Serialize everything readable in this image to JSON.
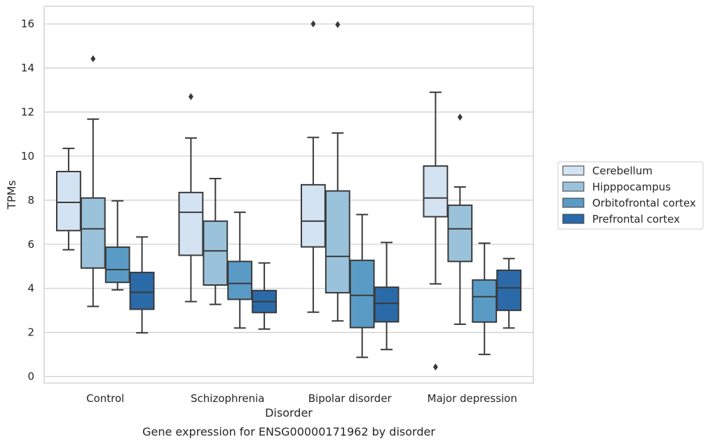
{
  "chart_data": {
    "type": "boxplot",
    "title": "Gene expression for ENSG00000171962 by disorder",
    "xlabel": "Disorder",
    "ylabel": "TPMs",
    "ylim": [
      -0.3,
      16.8
    ],
    "yticks": [
      0,
      2,
      4,
      6,
      8,
      10,
      12,
      14,
      16
    ],
    "grid": "horizontal",
    "legend_position": "right",
    "categories": [
      "Control",
      "Schizophrenia",
      "Bipolar disorder",
      "Major depression"
    ],
    "series": [
      {
        "name": "Cerebellum",
        "color": "#d4e3f2",
        "boxes": [
          {
            "whislo": 5.75,
            "q1": 6.62,
            "med": 7.9,
            "q3": 9.3,
            "whishi": 10.35,
            "fliers": []
          },
          {
            "whislo": 3.4,
            "q1": 5.5,
            "med": 7.45,
            "q3": 8.35,
            "whishi": 10.82,
            "fliers": [
              12.7
            ]
          },
          {
            "whislo": 2.92,
            "q1": 5.88,
            "med": 7.05,
            "q3": 8.7,
            "whishi": 10.85,
            "fliers": [
              16.0
            ]
          },
          {
            "whislo": 4.2,
            "q1": 7.25,
            "med": 8.1,
            "q3": 9.55,
            "whishi": 12.9,
            "fliers": [
              0.43
            ]
          }
        ]
      },
      {
        "name": "Hipppocampus",
        "color": "#9bc2db",
        "boxes": [
          {
            "whislo": 3.18,
            "q1": 4.92,
            "med": 6.7,
            "q3": 8.1,
            "whishi": 11.68,
            "fliers": [
              14.42
            ]
          },
          {
            "whislo": 3.27,
            "q1": 4.15,
            "med": 5.7,
            "q3": 7.05,
            "whishi": 8.98,
            "fliers": []
          },
          {
            "whislo": 2.52,
            "q1": 3.8,
            "med": 5.45,
            "q3": 8.42,
            "whishi": 11.05,
            "fliers": [
              15.97
            ]
          },
          {
            "whislo": 2.37,
            "q1": 5.22,
            "med": 6.7,
            "q3": 7.77,
            "whishi": 8.6,
            "fliers": [
              11.77
            ]
          }
        ]
      },
      {
        "name": "Orbitofrontal cortex",
        "color": "#5a9bc6",
        "boxes": [
          {
            "whislo": 3.93,
            "q1": 4.27,
            "med": 4.85,
            "q3": 5.87,
            "whishi": 7.97,
            "fliers": []
          },
          {
            "whislo": 2.2,
            "q1": 3.5,
            "med": 4.22,
            "q3": 5.22,
            "whishi": 7.45,
            "fliers": []
          },
          {
            "whislo": 0.87,
            "q1": 2.22,
            "med": 3.68,
            "q3": 5.27,
            "whishi": 7.35,
            "fliers": []
          },
          {
            "whislo": 1.0,
            "q1": 2.47,
            "med": 3.62,
            "q3": 4.38,
            "whishi": 6.05,
            "fliers": []
          }
        ]
      },
      {
        "name": "Prefrontal cortex",
        "color": "#2b6aa8",
        "boxes": [
          {
            "whislo": 1.98,
            "q1": 3.05,
            "med": 3.82,
            "q3": 4.72,
            "whishi": 6.33,
            "fliers": []
          },
          {
            "whislo": 2.15,
            "q1": 2.9,
            "med": 3.4,
            "q3": 3.9,
            "whishi": 5.15,
            "fliers": []
          },
          {
            "whislo": 1.22,
            "q1": 2.48,
            "med": 3.32,
            "q3": 4.05,
            "whishi": 6.08,
            "fliers": []
          },
          {
            "whislo": 2.2,
            "q1": 3.0,
            "med": 4.02,
            "q3": 4.82,
            "whishi": 5.35,
            "fliers": []
          }
        ]
      }
    ]
  }
}
